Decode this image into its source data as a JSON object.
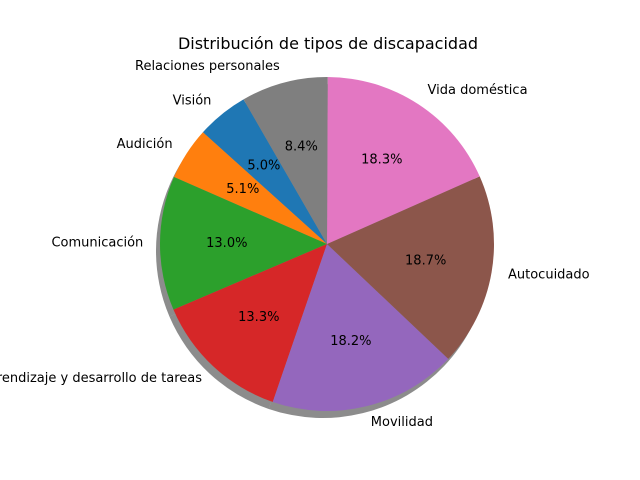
{
  "chart_data": {
    "type": "pie",
    "title": "Distribución de tipos de discapacidad",
    "shadow": true,
    "start_angle_deg": 120,
    "direction": "counterclockwise",
    "slices": [
      {
        "label": "Visión",
        "value": 5.0,
        "pct_label": "5.0%",
        "color": "#1f77b4"
      },
      {
        "label": "Audición",
        "value": 5.1,
        "pct_label": "5.1%",
        "color": "#ff7f0e"
      },
      {
        "label": "Comunicación",
        "value": 13.0,
        "pct_label": "13.0%",
        "color": "#2ca02c"
      },
      {
        "label": "Aprendizaje y desarrollo de tareas",
        "value": 13.3,
        "pct_label": "13.3%",
        "color": "#d62728"
      },
      {
        "label": "Movilidad",
        "value": 18.2,
        "pct_label": "18.2%",
        "color": "#9467bd"
      },
      {
        "label": "Autocuidado",
        "value": 18.7,
        "pct_label": "18.7%",
        "color": "#8c564b"
      },
      {
        "label": "Vida doméstica",
        "value": 18.3,
        "pct_label": "18.3%",
        "color": "#e377c2"
      },
      {
        "label": "Relaciones personales",
        "value": 8.4,
        "pct_label": "8.4%",
        "color": "#7f7f7f"
      }
    ]
  }
}
